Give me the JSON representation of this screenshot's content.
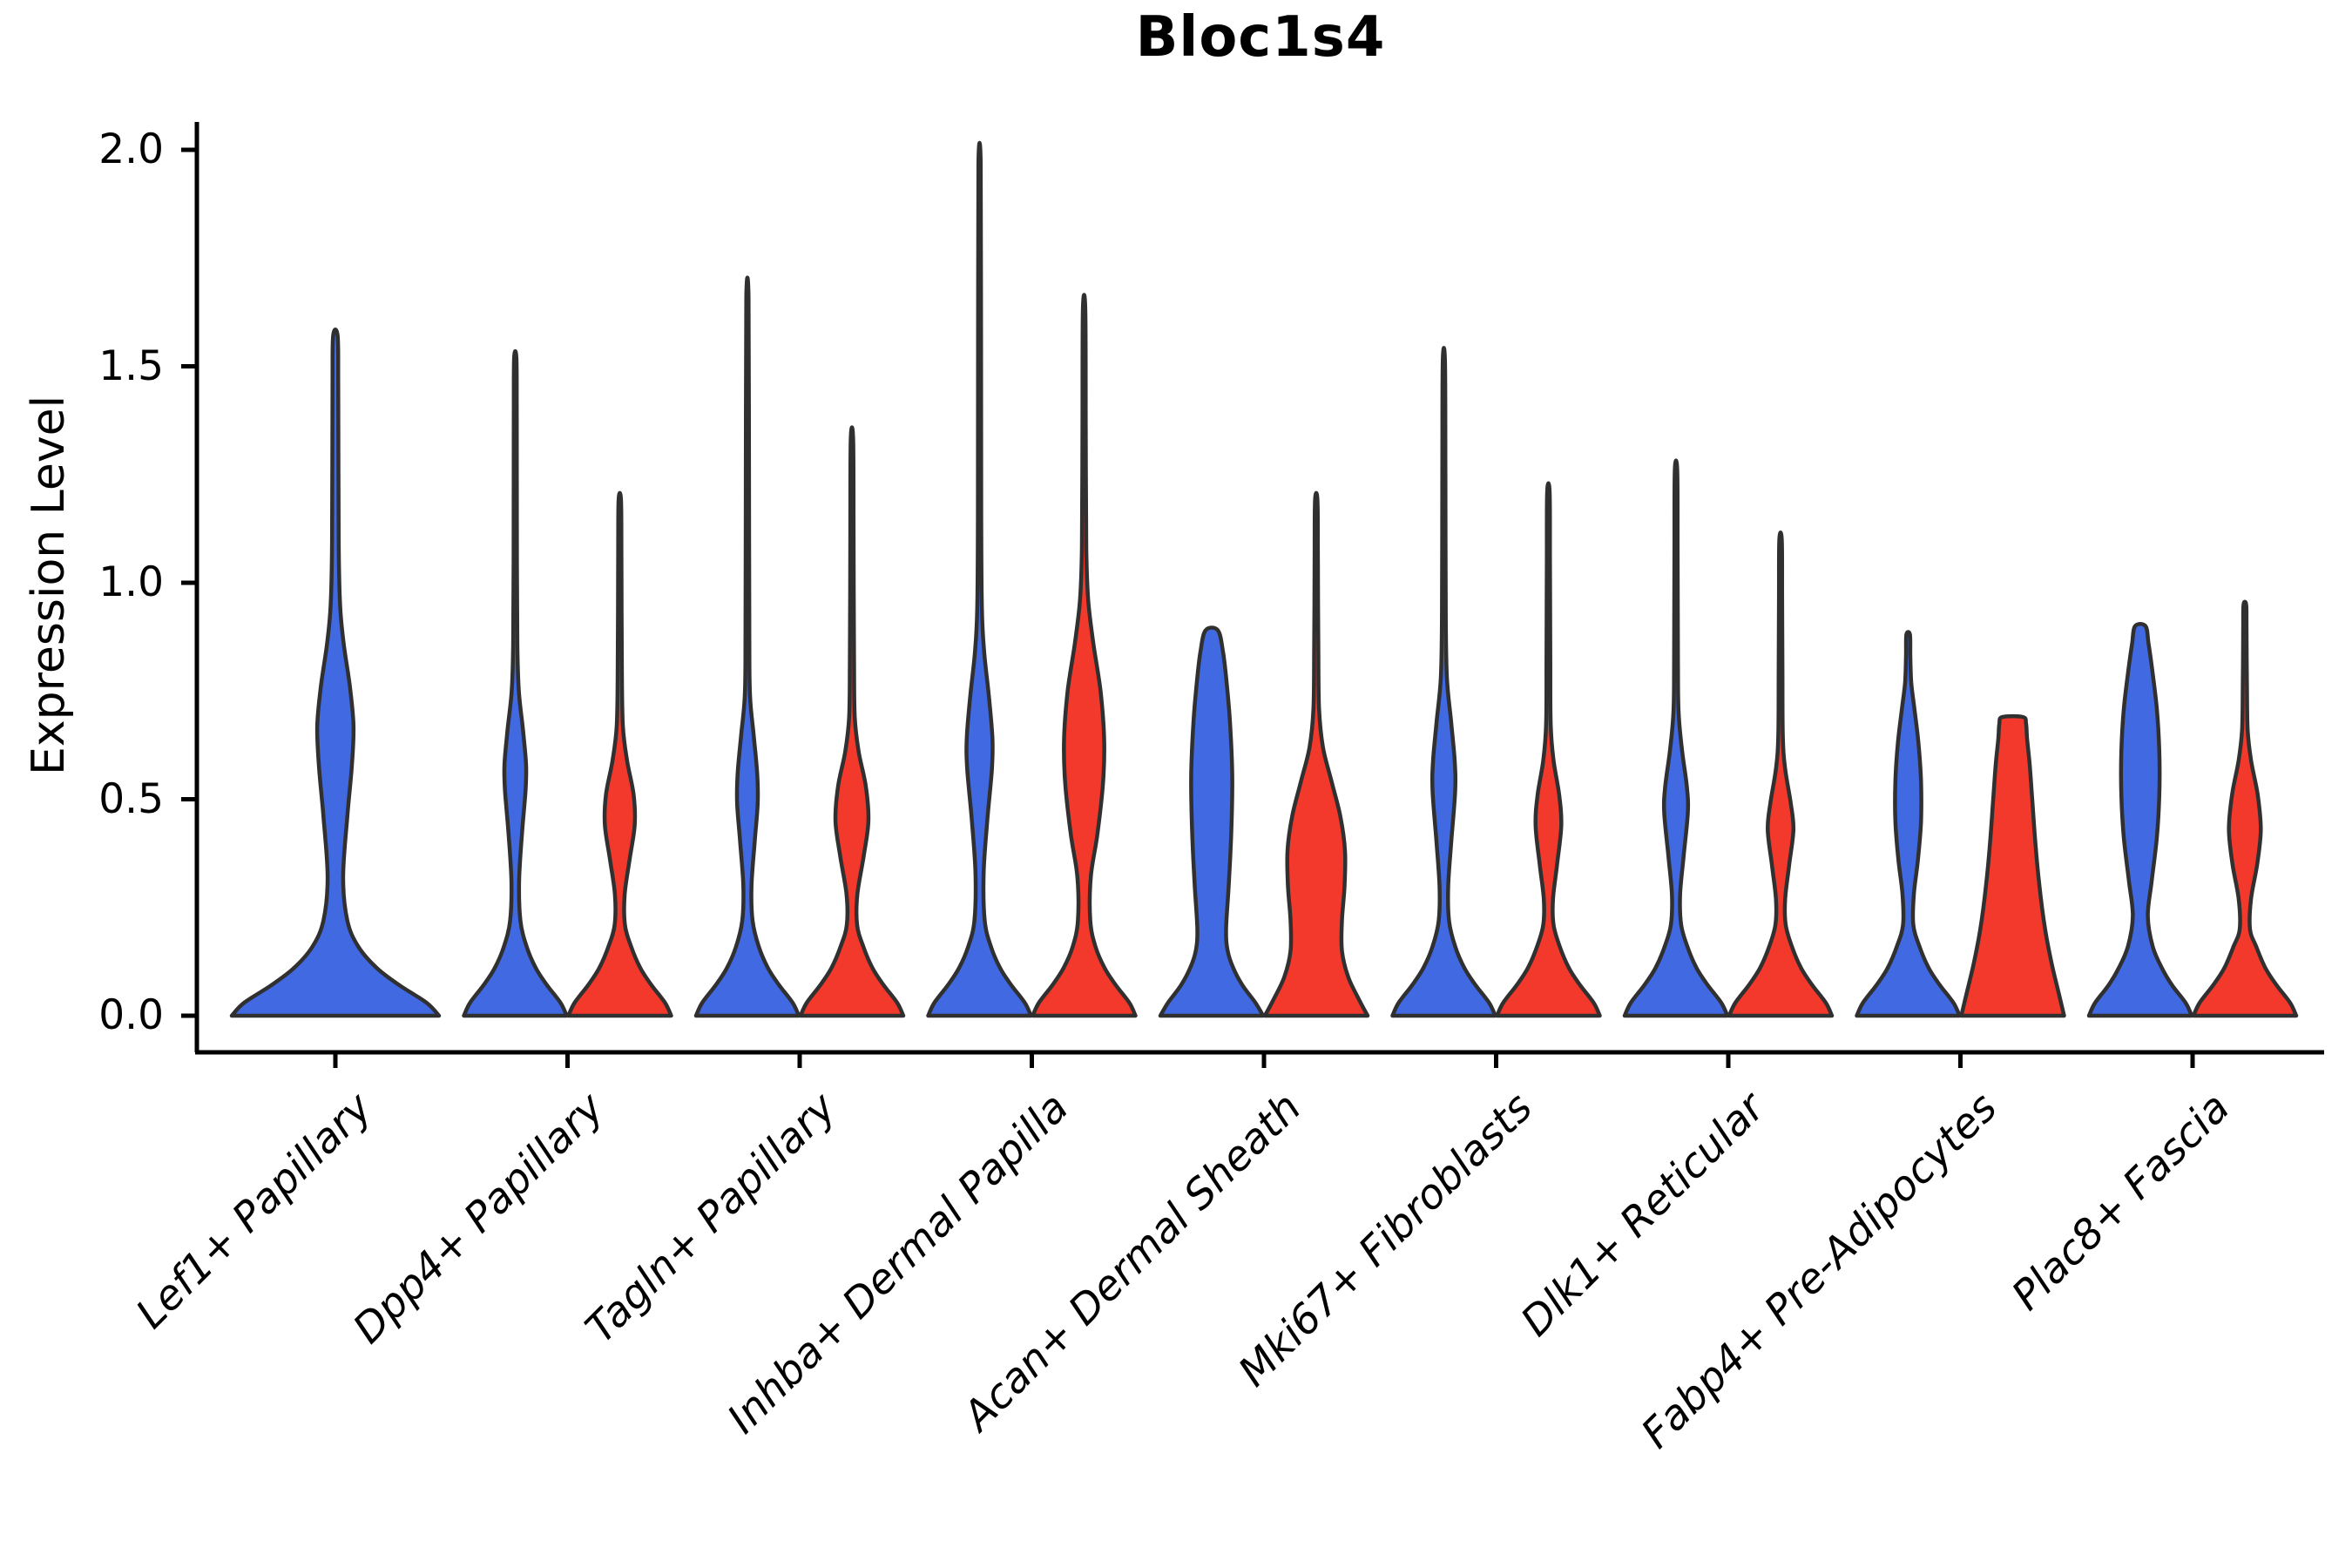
{
  "title": "Bloc1s4",
  "axes": {
    "ylabel": "Expression Level",
    "ytick_labels": [
      "0.0",
      "0.5",
      "1.0",
      "1.5",
      "2.0"
    ]
  },
  "chart_data": {
    "type": "violin",
    "title": "Bloc1s4",
    "xlabel": "",
    "ylabel": "Expression Level",
    "ylim": [
      0.0,
      2.0
    ],
    "yticks": [
      0.0,
      0.5,
      1.0,
      1.5,
      2.0
    ],
    "grid": false,
    "legend": "none",
    "categories": [
      "Lef1+ Papillary",
      "Dpp4+ Papillary",
      "Tagln+ Papillary",
      "Inhba+ Dermal Papilla",
      "Acan+ Dermal Sheath",
      "Mki67+ Fibroblasts",
      "Dlk1+ Reticular",
      "Fabp4+ Pre-Adipocytes",
      "Plac8+ Fascia"
    ],
    "series": [
      {
        "name": "blue",
        "color": "#4169E1",
        "max_expression": [
          1.57,
          1.52,
          1.66,
          1.97,
          0.89,
          1.51,
          1.26,
          0.88,
          0.9
        ]
      },
      {
        "name": "red",
        "color": "#F2392C",
        "max_expression": [
          null,
          1.19,
          1.33,
          1.63,
          1.19,
          1.21,
          1.1,
          0.69,
          0.95
        ]
      }
    ],
    "outline_color": "#303030",
    "violins": [
      {
        "cat": 0,
        "side": "blue",
        "single": true,
        "max": 1.57,
        "profile": [
          [
            0,
            1
          ],
          [
            0.03,
            0.88
          ],
          [
            0.07,
            0.62
          ],
          [
            0.11,
            0.4
          ],
          [
            0.16,
            0.22
          ],
          [
            0.22,
            0.115
          ],
          [
            0.32,
            0.075
          ],
          [
            0.46,
            0.115
          ],
          [
            0.58,
            0.16
          ],
          [
            0.67,
            0.175
          ],
          [
            0.76,
            0.14
          ],
          [
            0.86,
            0.08
          ],
          [
            0.95,
            0.045
          ],
          [
            1.1,
            0.032
          ],
          [
            1.45,
            0.028
          ],
          [
            1.57,
            0.022
          ]
        ]
      },
      {
        "cat": 1,
        "side": "blue",
        "single": false,
        "max": 1.52,
        "profile": [
          [
            0,
            1
          ],
          [
            0.03,
            0.88
          ],
          [
            0.07,
            0.62
          ],
          [
            0.11,
            0.4
          ],
          [
            0.16,
            0.22
          ],
          [
            0.22,
            0.1
          ],
          [
            0.31,
            0.075
          ],
          [
            0.42,
            0.13
          ],
          [
            0.52,
            0.2
          ],
          [
            0.58,
            0.21
          ],
          [
            0.66,
            0.15
          ],
          [
            0.75,
            0.07
          ],
          [
            0.86,
            0.04
          ],
          [
            1.05,
            0.032
          ],
          [
            1.4,
            0.028
          ],
          [
            1.52,
            0.022
          ]
        ]
      },
      {
        "cat": 1,
        "side": "red",
        "single": false,
        "max": 1.19,
        "profile": [
          [
            0,
            1
          ],
          [
            0.03,
            0.88
          ],
          [
            0.07,
            0.62
          ],
          [
            0.11,
            0.4
          ],
          [
            0.16,
            0.22
          ],
          [
            0.21,
            0.1
          ],
          [
            0.28,
            0.095
          ],
          [
            0.36,
            0.19
          ],
          [
            0.44,
            0.29
          ],
          [
            0.51,
            0.27
          ],
          [
            0.59,
            0.14
          ],
          [
            0.67,
            0.06
          ],
          [
            0.8,
            0.04
          ],
          [
            1.05,
            0.032
          ],
          [
            1.19,
            0.024
          ]
        ]
      },
      {
        "cat": 2,
        "side": "blue",
        "single": false,
        "max": 1.66,
        "profile": [
          [
            0,
            1
          ],
          [
            0.03,
            0.88
          ],
          [
            0.07,
            0.62
          ],
          [
            0.11,
            0.4
          ],
          [
            0.16,
            0.22
          ],
          [
            0.22,
            0.1
          ],
          [
            0.3,
            0.08
          ],
          [
            0.4,
            0.14
          ],
          [
            0.49,
            0.2
          ],
          [
            0.56,
            0.19
          ],
          [
            0.65,
            0.12
          ],
          [
            0.74,
            0.05
          ],
          [
            0.88,
            0.037
          ],
          [
            1.3,
            0.03
          ],
          [
            1.66,
            0.022
          ]
        ]
      },
      {
        "cat": 2,
        "side": "red",
        "single": false,
        "max": 1.33,
        "profile": [
          [
            0,
            1
          ],
          [
            0.03,
            0.88
          ],
          [
            0.07,
            0.62
          ],
          [
            0.11,
            0.4
          ],
          [
            0.16,
            0.22
          ],
          [
            0.21,
            0.1
          ],
          [
            0.28,
            0.105
          ],
          [
            0.37,
            0.23
          ],
          [
            0.45,
            0.32
          ],
          [
            0.53,
            0.27
          ],
          [
            0.61,
            0.13
          ],
          [
            0.69,
            0.055
          ],
          [
            0.82,
            0.04
          ],
          [
            1.1,
            0.032
          ],
          [
            1.33,
            0.024
          ]
        ]
      },
      {
        "cat": 3,
        "side": "blue",
        "single": false,
        "max": 1.97,
        "profile": [
          [
            0,
            1
          ],
          [
            0.03,
            0.88
          ],
          [
            0.07,
            0.62
          ],
          [
            0.11,
            0.4
          ],
          [
            0.16,
            0.22
          ],
          [
            0.22,
            0.1
          ],
          [
            0.33,
            0.08
          ],
          [
            0.45,
            0.15
          ],
          [
            0.57,
            0.24
          ],
          [
            0.64,
            0.25
          ],
          [
            0.74,
            0.18
          ],
          [
            0.84,
            0.09
          ],
          [
            0.94,
            0.045
          ],
          [
            1.15,
            0.033
          ],
          [
            1.6,
            0.028
          ],
          [
            1.97,
            0.022
          ]
        ]
      },
      {
        "cat": 3,
        "side": "red",
        "single": false,
        "max": 1.63,
        "profile": [
          [
            0,
            1
          ],
          [
            0.03,
            0.88
          ],
          [
            0.07,
            0.62
          ],
          [
            0.11,
            0.4
          ],
          [
            0.16,
            0.22
          ],
          [
            0.22,
            0.12
          ],
          [
            0.32,
            0.13
          ],
          [
            0.42,
            0.26
          ],
          [
            0.54,
            0.37
          ],
          [
            0.64,
            0.39
          ],
          [
            0.75,
            0.32
          ],
          [
            0.86,
            0.18
          ],
          [
            0.96,
            0.08
          ],
          [
            1.08,
            0.042
          ],
          [
            1.35,
            0.032
          ],
          [
            1.63,
            0.024
          ]
        ]
      },
      {
        "cat": 4,
        "side": "blue",
        "single": false,
        "max": 0.89,
        "profile": [
          [
            0,
            1
          ],
          [
            0.03,
            0.85
          ],
          [
            0.07,
            0.6
          ],
          [
            0.11,
            0.42
          ],
          [
            0.15,
            0.31
          ],
          [
            0.2,
            0.28
          ],
          [
            0.3,
            0.33
          ],
          [
            0.42,
            0.38
          ],
          [
            0.55,
            0.4
          ],
          [
            0.67,
            0.36
          ],
          [
            0.77,
            0.29
          ],
          [
            0.84,
            0.22
          ],
          [
            0.89,
            0.12
          ]
        ]
      },
      {
        "cat": 4,
        "side": "red",
        "single": false,
        "max": 1.19,
        "profile": [
          [
            0,
            1
          ],
          [
            0.04,
            0.82
          ],
          [
            0.09,
            0.62
          ],
          [
            0.15,
            0.5
          ],
          [
            0.22,
            0.5
          ],
          [
            0.3,
            0.55
          ],
          [
            0.38,
            0.56
          ],
          [
            0.46,
            0.47
          ],
          [
            0.54,
            0.3
          ],
          [
            0.62,
            0.13
          ],
          [
            0.71,
            0.055
          ],
          [
            0.85,
            0.04
          ],
          [
            1.05,
            0.032
          ],
          [
            1.19,
            0.024
          ]
        ]
      },
      {
        "cat": 5,
        "side": "blue",
        "single": false,
        "max": 1.51,
        "profile": [
          [
            0,
            1
          ],
          [
            0.03,
            0.88
          ],
          [
            0.07,
            0.62
          ],
          [
            0.11,
            0.4
          ],
          [
            0.16,
            0.22
          ],
          [
            0.22,
            0.1
          ],
          [
            0.3,
            0.085
          ],
          [
            0.41,
            0.15
          ],
          [
            0.52,
            0.22
          ],
          [
            0.59,
            0.21
          ],
          [
            0.68,
            0.14
          ],
          [
            0.78,
            0.06
          ],
          [
            0.92,
            0.038
          ],
          [
            1.25,
            0.03
          ],
          [
            1.51,
            0.022
          ]
        ]
      },
      {
        "cat": 5,
        "side": "red",
        "single": false,
        "max": 1.21,
        "profile": [
          [
            0,
            1
          ],
          [
            0.03,
            0.88
          ],
          [
            0.07,
            0.62
          ],
          [
            0.11,
            0.4
          ],
          [
            0.16,
            0.22
          ],
          [
            0.21,
            0.1
          ],
          [
            0.27,
            0.09
          ],
          [
            0.35,
            0.17
          ],
          [
            0.44,
            0.25
          ],
          [
            0.51,
            0.21
          ],
          [
            0.59,
            0.1
          ],
          [
            0.67,
            0.045
          ],
          [
            0.82,
            0.037
          ],
          [
            1.05,
            0.031
          ],
          [
            1.21,
            0.024
          ]
        ]
      },
      {
        "cat": 6,
        "side": "blue",
        "single": false,
        "max": 1.26,
        "profile": [
          [
            0,
            1
          ],
          [
            0.03,
            0.88
          ],
          [
            0.07,
            0.62
          ],
          [
            0.11,
            0.4
          ],
          [
            0.16,
            0.22
          ],
          [
            0.21,
            0.1
          ],
          [
            0.28,
            0.08
          ],
          [
            0.37,
            0.15
          ],
          [
            0.47,
            0.23
          ],
          [
            0.53,
            0.21
          ],
          [
            0.61,
            0.12
          ],
          [
            0.7,
            0.05
          ],
          [
            0.82,
            0.037
          ],
          [
            1.08,
            0.031
          ],
          [
            1.26,
            0.024
          ]
        ]
      },
      {
        "cat": 6,
        "side": "red",
        "single": false,
        "max": 1.1,
        "profile": [
          [
            0,
            1
          ],
          [
            0.03,
            0.88
          ],
          [
            0.07,
            0.62
          ],
          [
            0.11,
            0.4
          ],
          [
            0.16,
            0.22
          ],
          [
            0.21,
            0.1
          ],
          [
            0.27,
            0.09
          ],
          [
            0.35,
            0.17
          ],
          [
            0.43,
            0.25
          ],
          [
            0.49,
            0.2
          ],
          [
            0.57,
            0.09
          ],
          [
            0.64,
            0.045
          ],
          [
            0.78,
            0.037
          ],
          [
            0.97,
            0.031
          ],
          [
            1.1,
            0.024
          ]
        ]
      },
      {
        "cat": 7,
        "side": "blue",
        "single": false,
        "max": 0.88,
        "profile": [
          [
            0,
            1
          ],
          [
            0.03,
            0.88
          ],
          [
            0.07,
            0.62
          ],
          [
            0.11,
            0.4
          ],
          [
            0.16,
            0.22
          ],
          [
            0.21,
            0.1
          ],
          [
            0.28,
            0.11
          ],
          [
            0.36,
            0.19
          ],
          [
            0.45,
            0.25
          ],
          [
            0.54,
            0.25
          ],
          [
            0.63,
            0.2
          ],
          [
            0.71,
            0.12
          ],
          [
            0.77,
            0.06
          ],
          [
            0.83,
            0.042
          ],
          [
            0.88,
            0.035
          ]
        ]
      },
      {
        "cat": 7,
        "side": "red",
        "single": false,
        "max": 0.69,
        "profile": [
          [
            0,
            1
          ],
          [
            0.05,
            0.9
          ],
          [
            0.12,
            0.76
          ],
          [
            0.2,
            0.63
          ],
          [
            0.3,
            0.52
          ],
          [
            0.4,
            0.44
          ],
          [
            0.5,
            0.38
          ],
          [
            0.58,
            0.33
          ],
          [
            0.64,
            0.28
          ],
          [
            0.675,
            0.26
          ],
          [
            0.69,
            0.2
          ]
        ]
      },
      {
        "cat": 8,
        "side": "blue",
        "single": false,
        "max": 0.9,
        "profile": [
          [
            0,
            1
          ],
          [
            0.03,
            0.88
          ],
          [
            0.07,
            0.62
          ],
          [
            0.11,
            0.42
          ],
          [
            0.16,
            0.24
          ],
          [
            0.23,
            0.145
          ],
          [
            0.31,
            0.22
          ],
          [
            0.41,
            0.32
          ],
          [
            0.51,
            0.37
          ],
          [
            0.61,
            0.37
          ],
          [
            0.71,
            0.32
          ],
          [
            0.8,
            0.23
          ],
          [
            0.86,
            0.16
          ],
          [
            0.9,
            0.1
          ]
        ]
      },
      {
        "cat": 8,
        "side": "red",
        "single": false,
        "max": 0.95,
        "profile": [
          [
            0,
            1
          ],
          [
            0.03,
            0.88
          ],
          [
            0.07,
            0.62
          ],
          [
            0.11,
            0.4
          ],
          [
            0.16,
            0.22
          ],
          [
            0.2,
            0.1
          ],
          [
            0.27,
            0.12
          ],
          [
            0.35,
            0.24
          ],
          [
            0.43,
            0.31
          ],
          [
            0.51,
            0.25
          ],
          [
            0.59,
            0.12
          ],
          [
            0.66,
            0.055
          ],
          [
            0.76,
            0.04
          ],
          [
            0.9,
            0.032
          ],
          [
            0.95,
            0.026
          ]
        ]
      }
    ]
  }
}
